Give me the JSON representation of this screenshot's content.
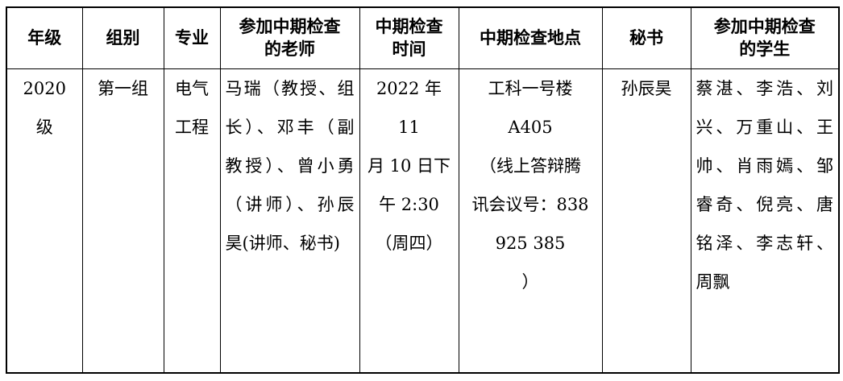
{
  "table": {
    "header": {
      "grade": "年级",
      "group": "组别",
      "major": "专业",
      "teachers": [
        "参加中期检查",
        "的老师"
      ],
      "time": [
        "中期检查",
        "时间"
      ],
      "location": "中期检查地点",
      "secretary": "秘书",
      "students": [
        "参加中期检查",
        "的学生"
      ]
    },
    "row": {
      "grade": "2020 级",
      "group": "第一组",
      "major": [
        "电气",
        "工程"
      ],
      "teachers": [
        "马瑞（教授、组",
        "长）、邓丰（副",
        "教授）、曾小勇",
        "（讲师）、孙辰",
        "昊(讲师、秘书)"
      ],
      "time": [
        "2022 年 11",
        "月 10 日下",
        "午 2:30",
        "（周四）"
      ],
      "location": [
        "工科一号楼",
        "A405",
        "（线上答辩腾",
        "讯会议号：838",
        "925 385",
        "）"
      ],
      "secretary": "孙辰昊",
      "students": [
        "蔡湛、李浩、刘",
        "兴、万重山、王",
        "帅、肖雨嫣、邹",
        "睿奇、倪亮、唐",
        "铭泽、李志轩、",
        "周飘"
      ]
    },
    "colors": {
      "text": "#000000",
      "border": "#000000",
      "background": "#ffffff"
    }
  }
}
